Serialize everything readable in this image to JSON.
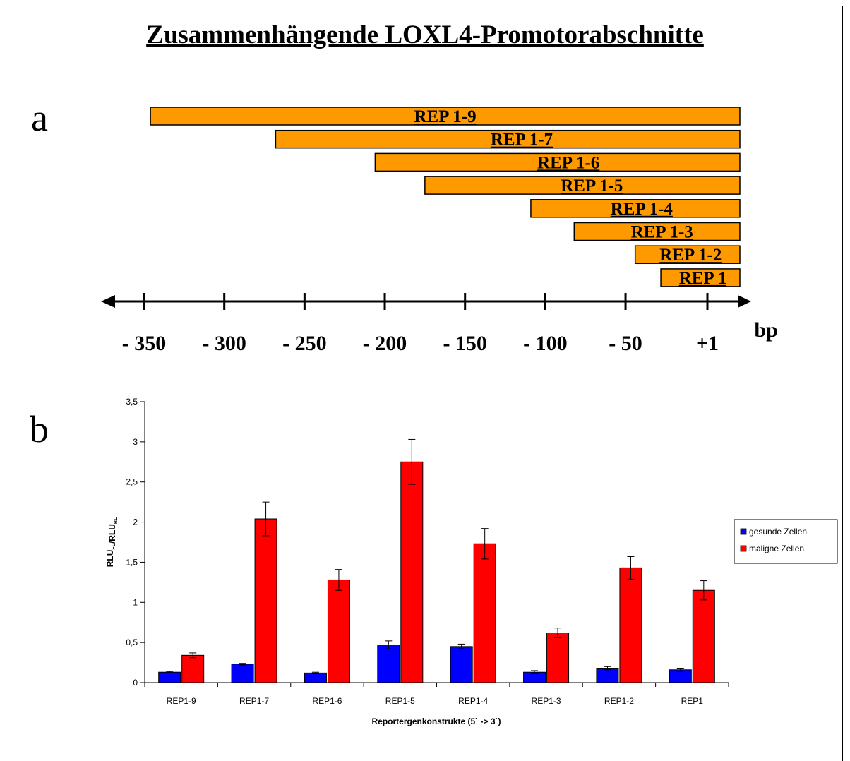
{
  "title": "Zusammenhängende LOXL4-Promotorabschnitte",
  "panel_a": {
    "letter": "a",
    "unit": "bp",
    "fragments": [
      {
        "label": "REP 1-9",
        "start": -346
      },
      {
        "label": "REP 1-7",
        "start": -268
      },
      {
        "label": "REP 1-6",
        "start": -206
      },
      {
        "label": "REP 1-5",
        "start": -175
      },
      {
        "label": "REP 1-4",
        "start": -109
      },
      {
        "label": "REP 1-3",
        "start": -82
      },
      {
        "label": "REP 1-2",
        "start": -44
      },
      {
        "label": "REP 1",
        "start": -28
      }
    ],
    "fragment_end": 20,
    "ticks": [
      {
        "value": -350,
        "label": "- 350"
      },
      {
        "value": -300,
        "label": "- 300"
      },
      {
        "value": -250,
        "label": "- 250"
      },
      {
        "value": -200,
        "label": "- 200"
      },
      {
        "value": -150,
        "label": "- 150"
      },
      {
        "value": -100,
        "label": "- 100"
      },
      {
        "value": -50,
        "label": "- 50"
      },
      {
        "value": 1,
        "label": "+1"
      }
    ],
    "bar_color": "#FF9900"
  },
  "panel_b": {
    "letter": "b"
  },
  "chart_data": {
    "type": "bar",
    "categories": [
      "REP1-9",
      "REP1-7",
      "REP1-6",
      "REP1-5",
      "REP1-4",
      "REP1-3",
      "REP1-2",
      "REP1"
    ],
    "series": [
      {
        "name": "gesunde Zellen",
        "color": "#0000FF",
        "values": [
          0.13,
          0.23,
          0.12,
          0.47,
          0.45,
          0.13,
          0.18,
          0.16
        ],
        "errors": [
          0.01,
          0.01,
          0.01,
          0.05,
          0.03,
          0.02,
          0.02,
          0.02
        ]
      },
      {
        "name": "maligne Zellen",
        "color": "#FF0000",
        "values": [
          0.34,
          2.04,
          1.28,
          2.75,
          1.73,
          0.62,
          1.43,
          1.15
        ],
        "errors": [
          0.03,
          0.21,
          0.13,
          0.28,
          0.19,
          0.06,
          0.14,
          0.12
        ]
      }
    ],
    "title": "",
    "xlabel": "Reportergenkonstrukte (5` -> 3`)",
    "ylabel_main": "RLU",
    "ylabel_sub1": "FL",
    "ylabel_mid": "/RLU",
    "ylabel_sub2": "RL",
    "ylim": [
      0,
      3.5
    ],
    "yticks": [
      {
        "value": 0,
        "label": "0"
      },
      {
        "value": 0.5,
        "label": "0,5"
      },
      {
        "value": 1,
        "label": "1"
      },
      {
        "value": 1.5,
        "label": "1,5"
      },
      {
        "value": 2,
        "label": "2"
      },
      {
        "value": 2.5,
        "label": "2,5"
      },
      {
        "value": 3,
        "label": "3"
      },
      {
        "value": 3.5,
        "label": "3,5"
      }
    ],
    "grid": false,
    "legend_position": "right"
  }
}
